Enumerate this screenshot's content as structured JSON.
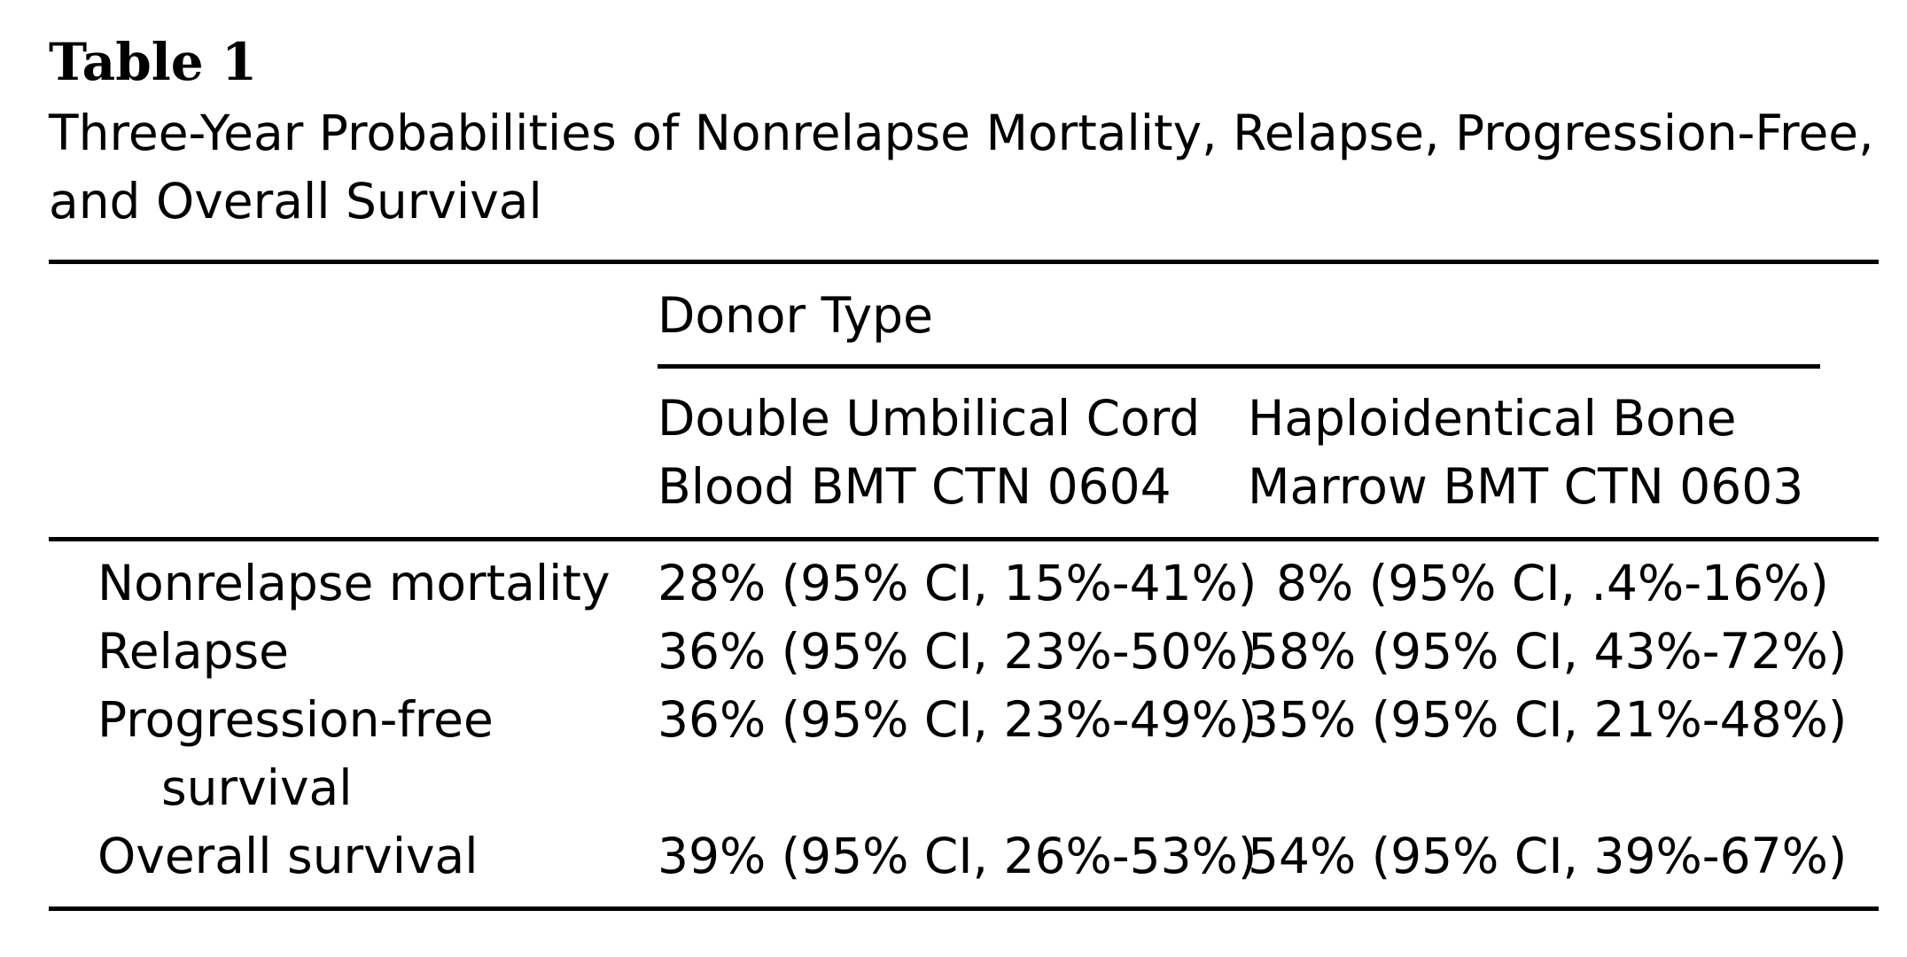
{
  "table": {
    "title": "Table 1",
    "caption": "Three-Year Probabilities of Nonrelapse Mortality, Relapse, Progression-Free, and Overall Survival",
    "spanner": "Donor Type",
    "columns": [
      [
        "Double Umbilical Cord",
        "Blood BMT CTN 0604"
      ],
      [
        "Haploidentical Bone",
        "Marrow BMT CTN 0603"
      ]
    ],
    "rows": [
      {
        "label": "Nonrelapse mortality",
        "cord": "28% (95% CI, 15%-41%)",
        "haplo": "8% (95% CI, .4%-16%)"
      },
      {
        "label": "Relapse",
        "cord": "36% (95% CI, 23%-50%)",
        "haplo": "58% (95% CI, 43%-72%)"
      },
      {
        "label": "Progression-free survival",
        "cord": "36% (95% CI, 23%-49%)",
        "haplo": "35% (95% CI, 21%-48%)"
      },
      {
        "label": "Overall survival",
        "cord": "39% (95% CI, 26%-53%)",
        "haplo": "54% (95% CI, 39%-67%)"
      }
    ]
  }
}
